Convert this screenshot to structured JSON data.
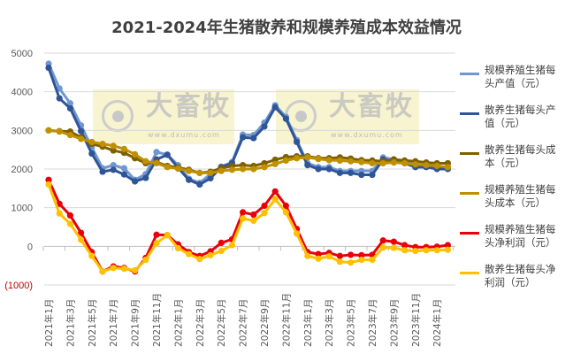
{
  "chart_data": {
    "type": "line",
    "title": "2021-2024年生猪散养和规模养殖成本效益情况",
    "xlabel": "",
    "ylabel": "",
    "ylim": [
      -1000,
      5000
    ],
    "yticks": [
      "5000",
      "4000",
      "3000",
      "2000",
      "1000",
      "0",
      "(1000)"
    ],
    "grid": true,
    "legend": "right",
    "x": [
      "2021年1月",
      "2021年2月",
      "2021年3月",
      "2021年4月",
      "2021年5月",
      "2021年6月",
      "2021年7月",
      "2021年8月",
      "2021年9月",
      "2021年10月",
      "2021年11月",
      "2021年12月",
      "2022年1月",
      "2022年2月",
      "2022年3月",
      "2022年4月",
      "2022年5月",
      "2022年6月",
      "2022年7月",
      "2022年8月",
      "2022年9月",
      "2022年10月",
      "2022年11月",
      "2022年12月",
      "2023年1月",
      "2023年2月",
      "2023年3月",
      "2023年4月",
      "2023年5月",
      "2023年6月",
      "2023年7月",
      "2023年8月",
      "2023年9月",
      "2023年10月",
      "2023年11月",
      "2023年12月",
      "2024年1月",
      "2024年2月"
    ],
    "xtick_labels": [
      "2021年1月",
      "2021年3月",
      "2021年5月",
      "2021年7月",
      "2021年9月",
      "2021年11月",
      "2022年1月",
      "2022年3月",
      "2022年5月",
      "2022年7月",
      "2022年9月",
      "2022年11月",
      "2023年1月",
      "2023年3月",
      "2023年5月",
      "2023年7月",
      "2023年9月",
      "2023年11月",
      "2024年1月"
    ],
    "series": [
      {
        "name": "规模养殖生猪每头产值（元）",
        "color": "#6f97d1",
        "values": [
          4725,
          4085,
          3700,
          3130,
          2560,
          2020,
          2100,
          2020,
          1720,
          1870,
          2440,
          2370,
          2100,
          1750,
          1640,
          1870,
          2060,
          2180,
          2890,
          2880,
          3200,
          3650,
          3350,
          2750,
          2150,
          2050,
          2050,
          1950,
          1950,
          1950,
          1950,
          2300,
          2250,
          2200,
          2100,
          2100,
          2050,
          2050
        ]
      },
      {
        "name": "散养生猪每头产值（元）",
        "color": "#2f5597",
        "values": [
          4620,
          3830,
          3570,
          2980,
          2400,
          1930,
          1980,
          1860,
          1680,
          1770,
          2250,
          2370,
          2030,
          1720,
          1600,
          1760,
          2050,
          2150,
          2820,
          2800,
          3100,
          3600,
          3300,
          2700,
          2100,
          2000,
          2000,
          1900,
          1900,
          1850,
          1850,
          2250,
          2200,
          2150,
          2050,
          2050,
          2000,
          2000
        ]
      },
      {
        "name": "散养生猪每头成本（元）",
        "color": "#7f6000",
        "values": [
          3000,
          2980,
          2970,
          2820,
          2650,
          2580,
          2480,
          2420,
          2280,
          2150,
          2180,
          2080,
          2040,
          1980,
          1900,
          1930,
          2020,
          2080,
          2100,
          2080,
          2150,
          2240,
          2310,
          2330,
          2330,
          2280,
          2280,
          2300,
          2270,
          2230,
          2220,
          2200,
          2250,
          2220,
          2200,
          2170,
          2150,
          2150
        ]
      },
      {
        "name": "规模养殖生猪每头成本（元）",
        "color": "#bf9000",
        "values": [
          3000,
          2970,
          2880,
          2780,
          2700,
          2650,
          2600,
          2520,
          2380,
          2200,
          2150,
          2050,
          2010,
          1950,
          1900,
          1900,
          1950,
          1980,
          2000,
          2000,
          2050,
          2130,
          2220,
          2280,
          2300,
          2260,
          2230,
          2220,
          2200,
          2180,
          2150,
          2150,
          2170,
          2150,
          2120,
          2100,
          2080,
          2050
        ]
      },
      {
        "name": "规模养殖生猪每头净利润（元）",
        "color": "#e8000b",
        "values": [
          1720,
          1100,
          800,
          350,
          -150,
          -650,
          -520,
          -560,
          -650,
          -300,
          300,
          290,
          50,
          -150,
          -250,
          -130,
          90,
          180,
          880,
          820,
          1050,
          1420,
          1050,
          450,
          -150,
          -200,
          -170,
          -250,
          -220,
          -230,
          -220,
          150,
          120,
          30,
          -20,
          -20,
          -10,
          30
        ]
      },
      {
        "name": "散养生猪每头净利润（元）",
        "color": "#ffc000",
        "values": [
          1600,
          850,
          580,
          170,
          -250,
          -650,
          -560,
          -580,
          -620,
          -350,
          80,
          290,
          -50,
          -200,
          -330,
          -230,
          -120,
          30,
          720,
          660,
          860,
          1220,
          880,
          330,
          -250,
          -320,
          -260,
          -400,
          -420,
          -350,
          -350,
          -30,
          -40,
          -100,
          -120,
          -100,
          -100,
          -90
        ]
      }
    ]
  },
  "legend_labels": [
    [
      "规模养殖生猪每",
      "头产值（元）"
    ],
    [
      "散养生猪每头产",
      "值（元）"
    ],
    [
      "散养生猪每头成",
      "本（元）"
    ],
    [
      "规模养殖生猪每",
      "头成本（元）"
    ],
    [
      "规模养殖生猪每",
      "头净利润（元）"
    ],
    [
      "散养生猪每头净",
      "利润（元）"
    ]
  ],
  "watermark": {
    "text": "大畜牧",
    "url": "www.dxumu.com"
  },
  "colors": {
    "negative_tick": "#c00000",
    "grid": "#d9d9d9",
    "text": "#595959"
  }
}
